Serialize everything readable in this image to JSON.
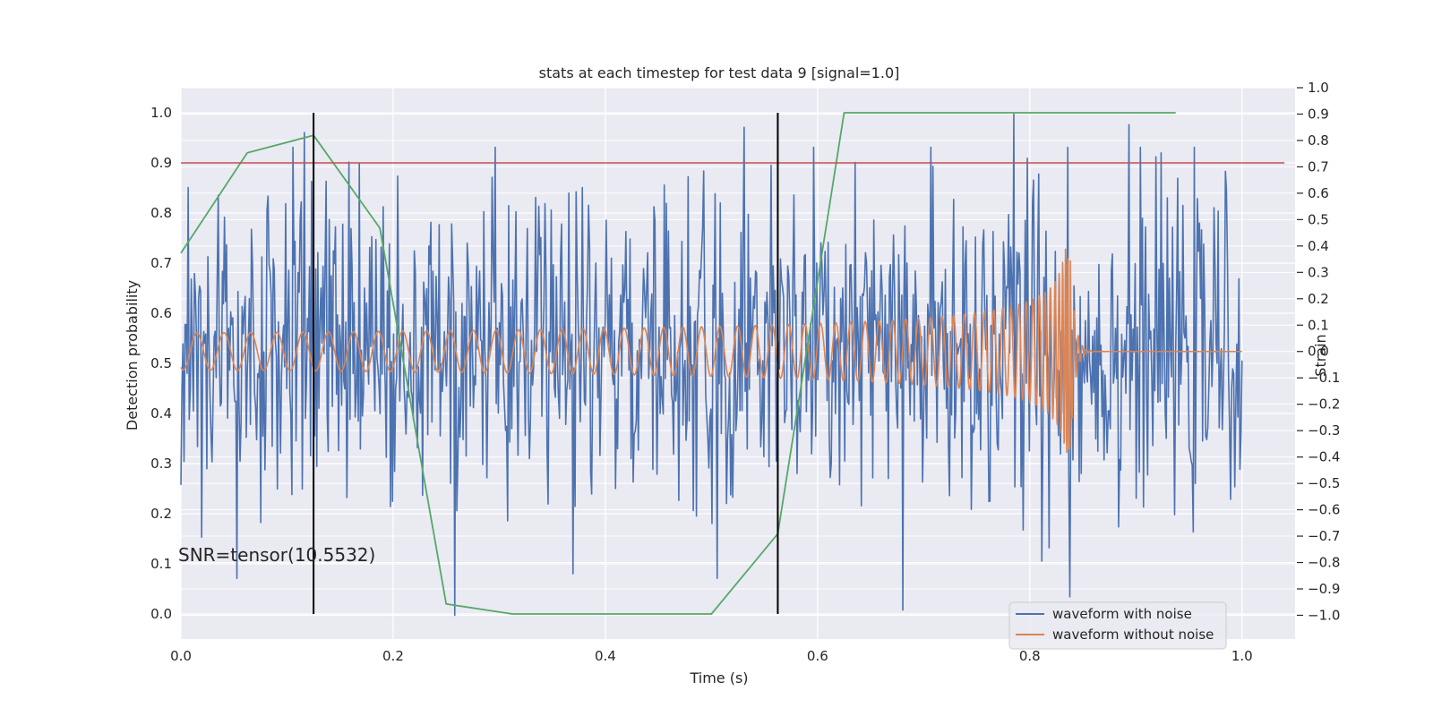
{
  "chart_data": {
    "type": "line",
    "title": "stats at each timestep for test data 9 [signal=1.0]",
    "xlabel": "Time (s)",
    "ylabel": "Detection probability",
    "y2label": "Strain",
    "xlim": [
      0.0,
      1.05
    ],
    "ylim": [
      -0.05,
      1.05
    ],
    "y2lim": [
      -1.09,
      1.0
    ],
    "xticks": [
      "0.0",
      "0.2",
      "0.4",
      "0.6",
      "0.8",
      "1.0"
    ],
    "yticks": [
      "0.0",
      "0.1",
      "0.2",
      "0.3",
      "0.4",
      "0.5",
      "0.6",
      "0.7",
      "0.8",
      "0.9",
      "1.0"
    ],
    "y2ticks": [
      "−1.0",
      "−0.9",
      "−0.8",
      "−0.7",
      "−0.6",
      "−0.5",
      "−0.4",
      "−0.3",
      "−0.2",
      "−0.1",
      "0.0",
      "0.1",
      "0.2",
      "0.3",
      "0.4",
      "0.5",
      "0.6",
      "0.7",
      "0.8",
      "0.9",
      "1.0"
    ],
    "grid": true,
    "legend_position": "lower-right",
    "annotation": "SNR=tensor(10.5532)",
    "threshold": {
      "y": 0.9,
      "x_start": 0.0,
      "x_end": 1.04,
      "color": "#c44e52"
    },
    "vertical_markers": [
      {
        "x": 0.125,
        "y_start": 0.0,
        "y_end": 1.0
      },
      {
        "x": 0.5625,
        "y_start": 0.0,
        "y_end": 1.0
      }
    ],
    "detection_probability": {
      "color": "#55a868",
      "x": [
        0.0,
        0.0625,
        0.125,
        0.1875,
        0.25,
        0.3125,
        0.375,
        0.4375,
        0.5,
        0.5625,
        0.625,
        0.6875,
        0.75,
        0.8125,
        0.875,
        0.9375
      ],
      "y": [
        0.72,
        0.92,
        0.955,
        0.77,
        0.02,
        0.0,
        0.0,
        0.0,
        0.0,
        0.16,
        1.0,
        1.0,
        1.0,
        1.0,
        1.0,
        1.0
      ]
    },
    "series": [
      {
        "name": "waveform with noise",
        "color": "#4c72b0",
        "axis": "right",
        "x_range": [
          0.0,
          1.0
        ],
        "samples": 1024,
        "value_range": [
          -1.0,
          0.9
        ],
        "notable_peaks": [
          {
            "x": 0.116,
            "y": 0.83
          },
          {
            "x": 0.531,
            "y": 0.85
          },
          {
            "x": 0.785,
            "y": 0.9
          },
          {
            "x": 0.893,
            "y": 0.86
          }
        ],
        "notable_troughs": [
          {
            "x": 0.053,
            "y": -0.86
          },
          {
            "x": 0.258,
            "y": -1.0
          },
          {
            "x": 0.505,
            "y": -0.86
          },
          {
            "x": 0.68,
            "y": -0.98
          }
        ]
      },
      {
        "name": "waveform without noise",
        "color": "#dd8452",
        "axis": "right",
        "x_range": [
          0.0,
          1.0
        ],
        "description": "chirp",
        "amplitude_start": 0.07,
        "amplitude_peak": 0.41,
        "merger_time": 0.838,
        "ringdown_end": 0.86,
        "value_after_merger": 0.0
      }
    ]
  }
}
